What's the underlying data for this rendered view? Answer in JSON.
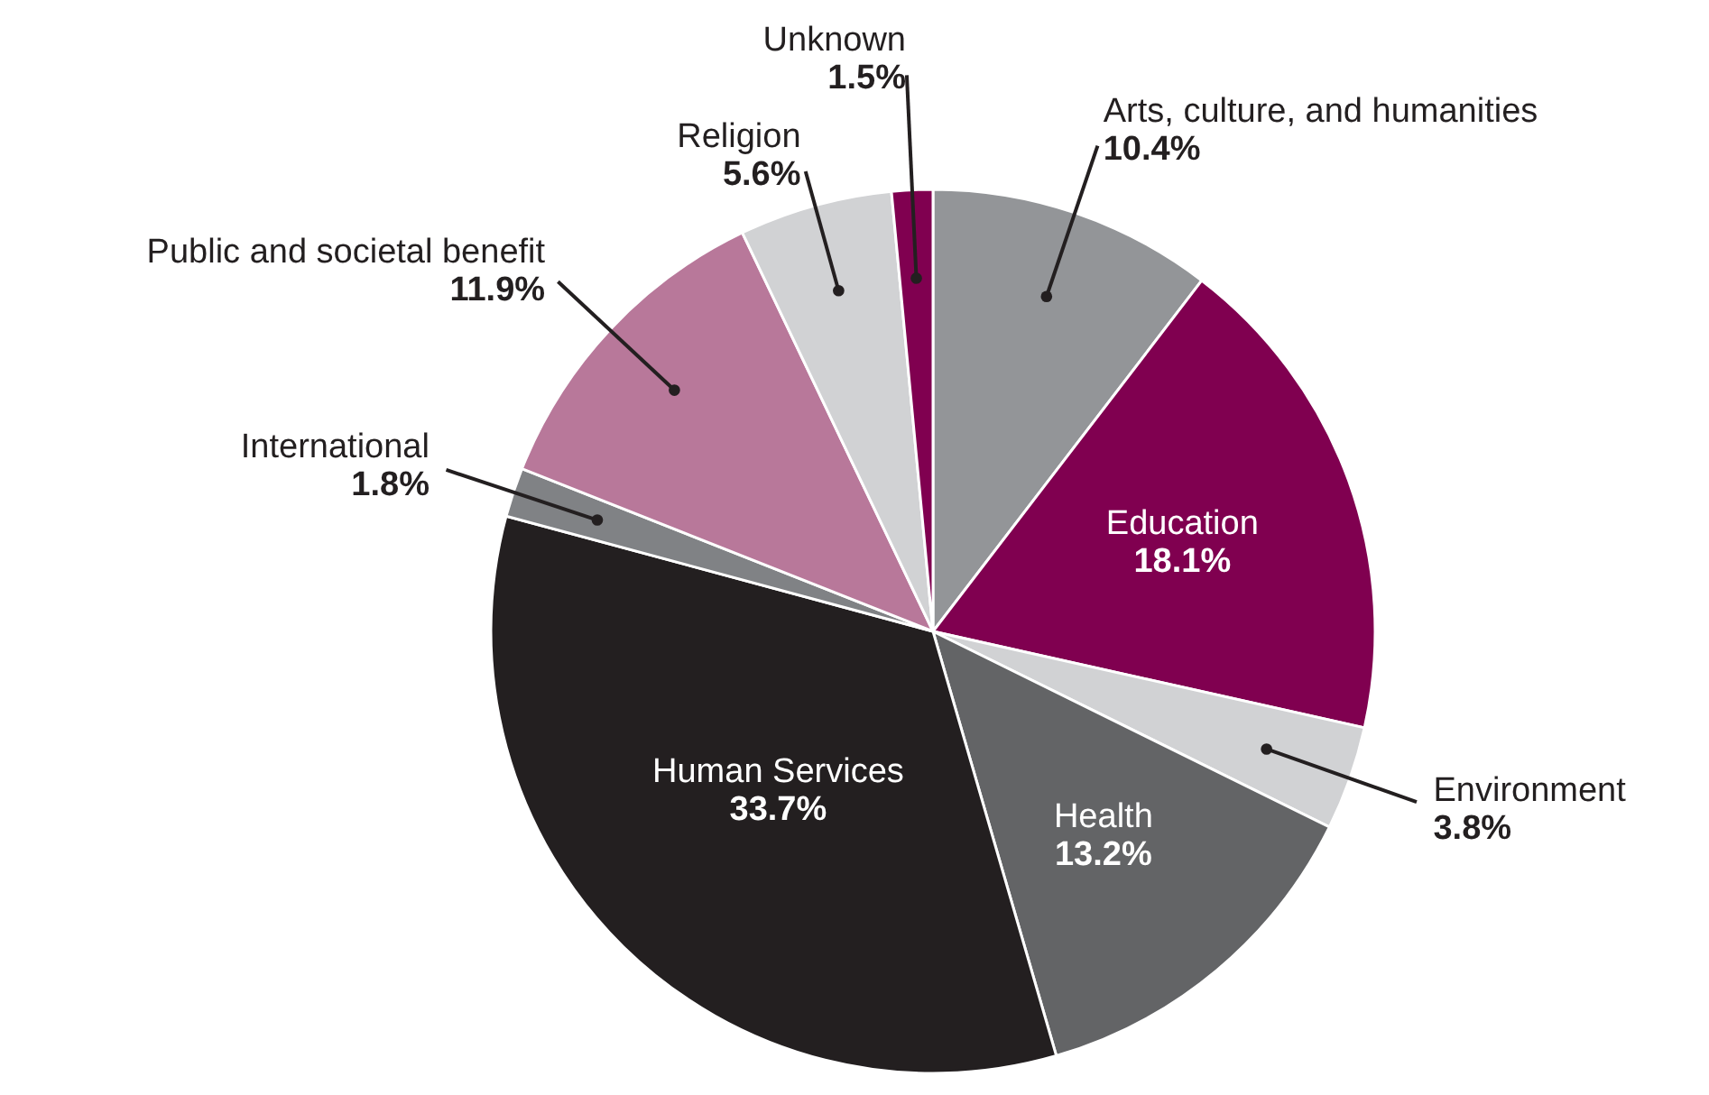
{
  "chart_data": {
    "type": "pie",
    "categories": [
      "Arts, culture, and humanities",
      "Education",
      "Environment",
      "Health",
      "Human Services",
      "International",
      "Public and societal benefit",
      "Religion",
      "Unknown"
    ],
    "values": [
      10.4,
      18.1,
      3.8,
      13.2,
      33.7,
      1.8,
      11.9,
      5.6,
      1.5
    ],
    "value_labels": [
      "10.4%",
      "18.1%",
      "3.8%",
      "13.2%",
      "33.7%",
      "1.8%",
      "11.9%",
      "5.6%",
      "1.5%"
    ],
    "colors": [
      "#939598",
      "#800050",
      "#d1d2d4",
      "#636466",
      "#231f20",
      "#808285",
      "#b8789a",
      "#d1d2d4",
      "#800050"
    ],
    "legend": false
  }
}
